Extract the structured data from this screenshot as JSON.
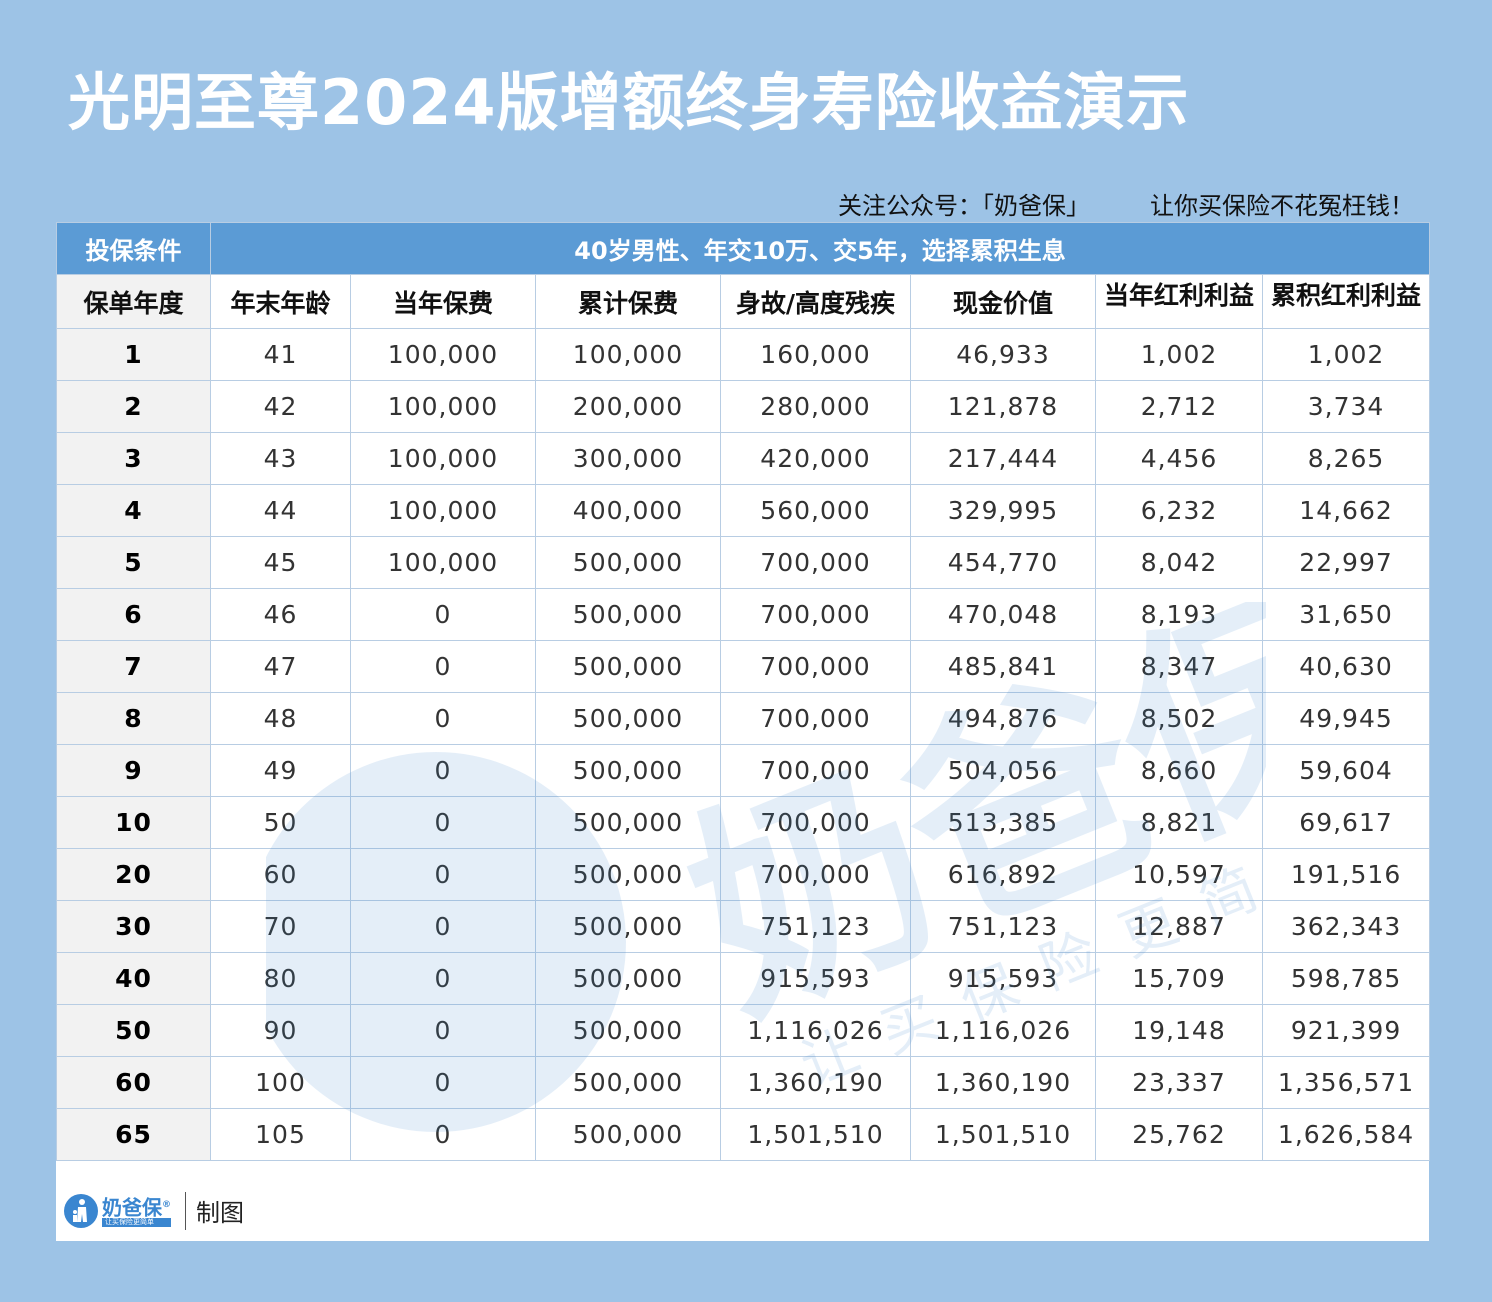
{
  "title": "光明至尊2024版增额终身寿险收益演示",
  "slogan": {
    "follow": "关注公众号：「奶爸保」",
    "tagline": "让你买保险不花冤枉钱！"
  },
  "table": {
    "condition_label": "投保条件",
    "condition_value": "40岁男性、年交10万、交5年，选择累积生息",
    "headers": [
      "保单年度",
      "年末年龄",
      "当年保费",
      "累计保费",
      "身故/高度残疾",
      "现金价值",
      "当年红利利益",
      "累积红利利益"
    ],
    "rows": [
      [
        "1",
        "41",
        "100,000",
        "100,000",
        "160,000",
        "46,933",
        "1,002",
        "1,002"
      ],
      [
        "2",
        "42",
        "100,000",
        "200,000",
        "280,000",
        "121,878",
        "2,712",
        "3,734"
      ],
      [
        "3",
        "43",
        "100,000",
        "300,000",
        "420,000",
        "217,444",
        "4,456",
        "8,265"
      ],
      [
        "4",
        "44",
        "100,000",
        "400,000",
        "560,000",
        "329,995",
        "6,232",
        "14,662"
      ],
      [
        "5",
        "45",
        "100,000",
        "500,000",
        "700,000",
        "454,770",
        "8,042",
        "22,997"
      ],
      [
        "6",
        "46",
        "0",
        "500,000",
        "700,000",
        "470,048",
        "8,193",
        "31,650"
      ],
      [
        "7",
        "47",
        "0",
        "500,000",
        "700,000",
        "485,841",
        "8,347",
        "40,630"
      ],
      [
        "8",
        "48",
        "0",
        "500,000",
        "700,000",
        "494,876",
        "8,502",
        "49,945"
      ],
      [
        "9",
        "49",
        "0",
        "500,000",
        "700,000",
        "504,056",
        "8,660",
        "59,604"
      ],
      [
        "10",
        "50",
        "0",
        "500,000",
        "700,000",
        "513,385",
        "8,821",
        "69,617"
      ],
      [
        "20",
        "60",
        "0",
        "500,000",
        "700,000",
        "616,892",
        "10,597",
        "191,516"
      ],
      [
        "30",
        "70",
        "0",
        "500,000",
        "751,123",
        "751,123",
        "12,887",
        "362,343"
      ],
      [
        "40",
        "80",
        "0",
        "500,000",
        "915,593",
        "915,593",
        "15,709",
        "598,785"
      ],
      [
        "50",
        "90",
        "0",
        "500,000",
        "1,116,026",
        "1,116,026",
        "19,148",
        "921,399"
      ],
      [
        "60",
        "100",
        "0",
        "500,000",
        "1,360,190",
        "1,360,190",
        "23,337",
        "1,356,571"
      ],
      [
        "65",
        "105",
        "0",
        "500,000",
        "1,501,510",
        "1,501,510",
        "25,762",
        "1,626,584"
      ]
    ]
  },
  "footer": {
    "logo_name": "奶爸保",
    "logo_registered": "®",
    "logo_tagline": "让买保险更简单",
    "made_by": "制图"
  },
  "watermark": {
    "brand": "奶爸保",
    "registered": "®",
    "tagline": "让买保险更简单"
  },
  "colors": {
    "background": "#9dc3e6",
    "header_blue": "#5b9bd5",
    "brand_blue": "#3a86d0"
  }
}
